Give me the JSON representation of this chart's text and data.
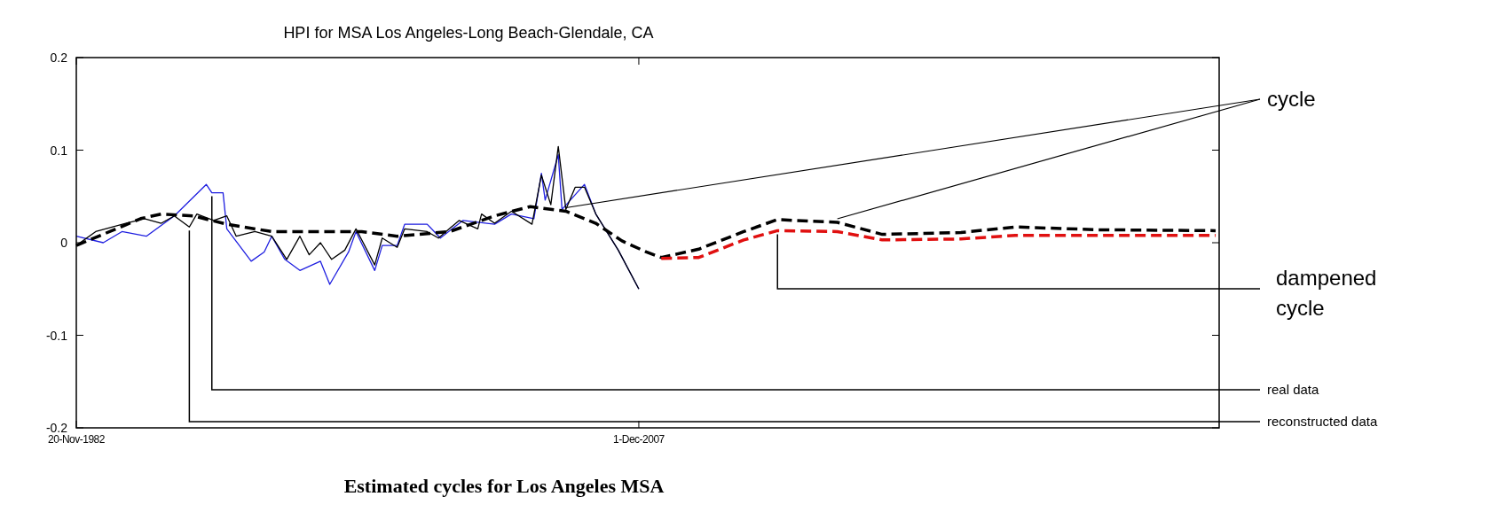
{
  "chart_data": {
    "type": "line",
    "title": "HPI for MSA Los Angeles-Long Beach-Glendale, CA",
    "annotations": [
      "Estimated cycles for Los Angeles MSA"
    ],
    "xlim": [
      "1982-11-20",
      "2033-09-27"
    ],
    "xticks": [
      {
        "value": "1982-11-20",
        "label": "20-Nov-1982"
      },
      {
        "value": "2007-12-01",
        "label": "1-Dec-2007"
      }
    ],
    "ylim": [
      -0.2,
      0.2
    ],
    "yticks": [
      -0.2,
      -0.1,
      0,
      0.1,
      0.2
    ],
    "grid": false,
    "series": [
      {
        "name": "real data",
        "color": "#1f1fe0",
        "line_style": "solid",
        "x": [
          "1982-11-20",
          "1984-02",
          "1984-12",
          "1986-01",
          "1987-04",
          "1988-09",
          "1988-12",
          "1989-06",
          "1989-08",
          "1990-09",
          "1991-04",
          "1991-08",
          "1992-03",
          "1992-11",
          "1993-10",
          "1994-03",
          "1995-01",
          "1995-05",
          "1996-03",
          "1996-07",
          "1997-03",
          "1997-07",
          "1998-07",
          "1999-02",
          "2000-02",
          "2001-07",
          "2002-04",
          "2003-04",
          "2003-08",
          "2003-10",
          "2004-05",
          "2004-07",
          "2005-07",
          "2006-01",
          "2007-01",
          "2007-12"
        ],
        "values": [
          0.007,
          0,
          0.012,
          0.007,
          0.029,
          0.063,
          0.054,
          0.054,
          0.015,
          -0.02,
          -0.01,
          0.007,
          -0.018,
          -0.03,
          -0.02,
          -0.045,
          -0.01,
          0.012,
          -0.03,
          -0.003,
          -0.003,
          0.02,
          0.02,
          0.005,
          0.024,
          0.02,
          0.031,
          0.026,
          0.075,
          0.046,
          0.095,
          0.036,
          0.063,
          0.031,
          -0.008,
          -0.05
        ]
      },
      {
        "name": "reconstructed data",
        "color": "#000000",
        "line_style": "solid",
        "x": [
          "1982-11-20",
          "1983-10",
          "1985-02",
          "1985-12",
          "1986-09",
          "1987-04",
          "1987-12",
          "1988-04",
          "1989-01",
          "1989-08",
          "1990-01",
          "1990-11",
          "1991-08",
          "1992-04",
          "1992-11",
          "1993-04",
          "1993-10",
          "1994-04",
          "1994-11",
          "1995-05",
          "1996-03",
          "1996-07",
          "1997-03",
          "1997-07",
          "1998-07",
          "1999-01",
          "1999-12",
          "2000-10",
          "2000-12",
          "2001-07",
          "2002-04",
          "2003-03",
          "2003-08",
          "2004-01",
          "2004-05",
          "2004-09",
          "2005-02",
          "2005-07",
          "2006-01",
          "2007-01",
          "2007-12"
        ],
        "values": [
          -0.003,
          0.012,
          0.021,
          0.026,
          0.021,
          0.029,
          0.017,
          0.031,
          0.024,
          0.029,
          0.007,
          0.012,
          0.007,
          -0.018,
          0.007,
          -0.013,
          0,
          -0.018,
          -0.008,
          0.015,
          -0.024,
          0.005,
          -0.005,
          0.015,
          0.012,
          0.005,
          0.024,
          0.015,
          0.031,
          0.021,
          0.034,
          0.02,
          0.073,
          0.041,
          0.104,
          0.036,
          0.06,
          0.06,
          0.031,
          -0.008,
          -0.05
        ]
      },
      {
        "name": "cycle",
        "color": "#000000",
        "line_style": "dashed",
        "x": [
          "1982-11-20",
          "1985-10",
          "1986-09",
          "1988-02",
          "1989-08",
          "1991-08",
          "1995-08",
          "1997-03",
          "1999-07",
          "2001-07",
          "2003-02",
          "2004-09",
          "2006-01",
          "2007-03",
          "2008-04",
          "2008-12",
          "2010-08",
          "2012-08",
          "2014-02",
          "2016-10",
          "2018-10",
          "2022-04",
          "2024-09",
          "2028-05",
          "2033-08"
        ],
        "values": [
          -0.003,
          0.026,
          0.031,
          0.029,
          0.02,
          0.012,
          0.012,
          0.007,
          0.012,
          0.029,
          0.039,
          0.034,
          0.021,
          0.002,
          -0.01,
          -0.016,
          -0.007,
          0.012,
          0.025,
          0.022,
          0.009,
          0.011,
          0.017,
          0.014,
          0.013
        ]
      },
      {
        "name": "dampened cycle",
        "color": "#e01010",
        "line_style": "dashed",
        "x": [
          "2008-12",
          "2010-08",
          "2012-08",
          "2014-02",
          "2016-10",
          "2018-10",
          "2022-04",
          "2024-09",
          "2033-08"
        ],
        "values": [
          -0.017,
          -0.016,
          0.003,
          0.013,
          0.012,
          0.003,
          0.004,
          0.008,
          0.008
        ]
      }
    ]
  }
}
